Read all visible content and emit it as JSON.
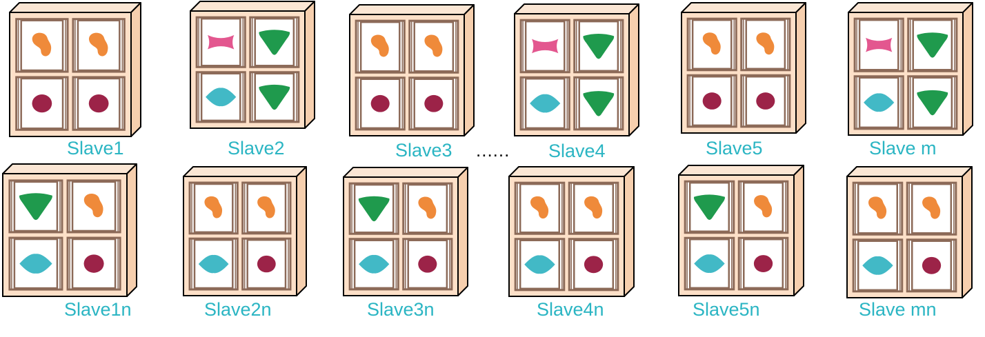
{
  "colors": {
    "box_face": "#fde0c8",
    "box_side": "#f6cfae",
    "box_top": "#fbe6d4",
    "box_outline": "#000000",
    "frame": "#8c6a58",
    "window": "#ffffff",
    "label": "#2bb5c3",
    "shapes": {
      "orange-blob": "#ef8a3a",
      "crimson-circle": "#9c2348",
      "pink-bowtie": "#e3578f",
      "green-triangle": "#1f9a4d",
      "teal-diamond": "#42b9c6"
    }
  },
  "ellipsis": "......",
  "row1": [
    {
      "label": "Slave1",
      "cells": [
        "orange-blob",
        "orange-blob",
        "crimson-circle",
        "crimson-circle"
      ]
    },
    {
      "label": "Slave2",
      "cells": [
        "pink-bowtie",
        "green-triangle",
        "teal-diamond",
        "green-triangle"
      ]
    },
    {
      "label": "Slave3",
      "cells": [
        "orange-blob",
        "orange-blob",
        "crimson-circle",
        "crimson-circle"
      ]
    },
    {
      "label": "Slave4",
      "cells": [
        "pink-bowtie",
        "green-triangle",
        "teal-diamond",
        "green-triangle"
      ]
    },
    {
      "label": "Slave5",
      "cells": [
        "orange-blob",
        "orange-blob",
        "crimson-circle",
        "crimson-circle"
      ]
    },
    {
      "label": "Slave m",
      "cells": [
        "pink-bowtie",
        "green-triangle",
        "teal-diamond",
        "green-triangle"
      ]
    }
  ],
  "row2": [
    {
      "label": "Slave1n",
      "cells": [
        "green-triangle",
        "orange-blob",
        "teal-diamond",
        "crimson-circle"
      ]
    },
    {
      "label": "Slave2n",
      "cells": [
        "orange-blob",
        "orange-blob",
        "teal-diamond",
        "crimson-circle"
      ]
    },
    {
      "label": "Slave3n",
      "cells": [
        "green-triangle",
        "orange-blob",
        "teal-diamond",
        "crimson-circle"
      ]
    },
    {
      "label": "Slave4n",
      "cells": [
        "orange-blob",
        "orange-blob",
        "teal-diamond",
        "crimson-circle"
      ]
    },
    {
      "label": "Slave5n",
      "cells": [
        "green-triangle",
        "orange-blob",
        "teal-diamond",
        "crimson-circle"
      ]
    },
    {
      "label": "Slave mn",
      "cells": [
        "orange-blob",
        "orange-blob",
        "teal-diamond",
        "crimson-circle"
      ]
    }
  ]
}
